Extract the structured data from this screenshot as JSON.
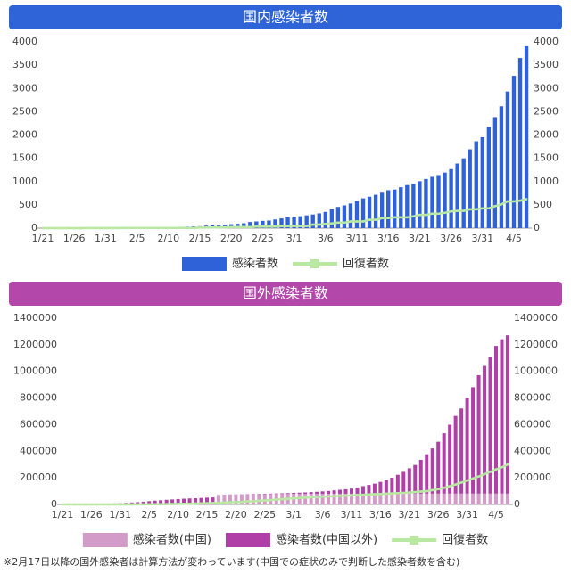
{
  "chart_data": [
    {
      "type": "bar",
      "title": "国内感染者数",
      "categories": [
        "1/21",
        null,
        null,
        null,
        null,
        "1/26",
        null,
        null,
        null,
        null,
        "1/31",
        null,
        null,
        null,
        null,
        "2/5",
        null,
        null,
        null,
        null,
        "2/10",
        null,
        null,
        null,
        null,
        "2/15",
        null,
        null,
        null,
        null,
        "2/20",
        null,
        null,
        null,
        null,
        "2/25",
        null,
        null,
        null,
        null,
        "3/1",
        null,
        null,
        null,
        null,
        "3/6",
        null,
        null,
        null,
        null,
        "3/11",
        null,
        null,
        null,
        null,
        "3/16",
        null,
        null,
        null,
        null,
        "3/21",
        null,
        null,
        null,
        null,
        "3/26",
        null,
        null,
        null,
        null,
        "3/31",
        null,
        null,
        null,
        null,
        "4/5",
        null,
        null
      ],
      "ylim": [
        0,
        4000
      ],
      "yticks": [
        0,
        500,
        1000,
        1500,
        2000,
        2500,
        3000,
        3500,
        4000
      ],
      "grid": false,
      "series": [
        {
          "name": "感染者数",
          "type": "bar",
          "color": "#2f62d8",
          "values": [
            0,
            1,
            1,
            2,
            3,
            4,
            4,
            7,
            11,
            14,
            17,
            20,
            20,
            20,
            20,
            22,
            25,
            25,
            26,
            26,
            28,
            28,
            29,
            33,
            38,
            41,
            53,
            59,
            66,
            73,
            84,
            93,
            105,
            132,
            144,
            156,
            164,
            186,
            210,
            230,
            243,
            256,
            274,
            293,
            317,
            349,
            408,
            455,
            488,
            530,
            581,
            639,
            675,
            716,
            780,
            814,
            829,
            878,
            924,
            950,
            1007,
            1055,
            1101,
            1140,
            1193,
            1268,
            1387,
            1499,
            1693,
            1866,
            1953,
            2178,
            2384,
            2617,
            2935,
            3271,
            3654,
            3906
          ]
        },
        {
          "name": "回復者数",
          "type": "line",
          "color": "#b9e8a2",
          "values": [
            0,
            0,
            0,
            0,
            0,
            0,
            0,
            1,
            1,
            1,
            1,
            1,
            1,
            4,
            4,
            4,
            4,
            4,
            4,
            4,
            4,
            4,
            4,
            4,
            4,
            12,
            12,
            14,
            18,
            18,
            22,
            22,
            22,
            22,
            32,
            32,
            32,
            32,
            43,
            43,
            46,
            46,
            46,
            76,
            76,
            92,
            102,
            118,
            118,
            144,
            144,
            144,
            180,
            180,
            215,
            215,
            232,
            232,
            232,
            255,
            285,
            285,
            310,
            310,
            330,
            359,
            372,
            372,
            404,
            404,
            424,
            424,
            472,
            511,
            575,
            575,
            592,
            622
          ]
        }
      ]
    },
    {
      "type": "stacked_bar",
      "title": "国外感染者数",
      "categories": [
        "1/21",
        null,
        null,
        null,
        null,
        "1/26",
        null,
        null,
        null,
        null,
        "1/31",
        null,
        null,
        null,
        null,
        "2/5",
        null,
        null,
        null,
        null,
        "2/10",
        null,
        null,
        null,
        null,
        "2/15",
        null,
        null,
        null,
        null,
        "2/20",
        null,
        null,
        null,
        null,
        "2/25",
        null,
        null,
        null,
        null,
        "3/1",
        null,
        null,
        null,
        null,
        "3/6",
        null,
        null,
        null,
        null,
        "3/11",
        null,
        null,
        null,
        null,
        "3/16",
        null,
        null,
        null,
        null,
        "3/21",
        null,
        null,
        null,
        null,
        "3/26",
        null,
        null,
        null,
        null,
        "3/31",
        null,
        null,
        null,
        null,
        "4/5",
        null,
        null
      ],
      "ylim": [
        0,
        1400000
      ],
      "yticks": [
        0,
        200000,
        400000,
        600000,
        800000,
        1000000,
        1200000,
        1400000
      ],
      "grid": false,
      "series": [
        {
          "name": "感染者数(中国)",
          "type": "bar",
          "color": "#d39bc8",
          "values": [
            null,
            null,
            null,
            null,
            null,
            null,
            null,
            null,
            null,
            null,
            null,
            null,
            null,
            null,
            null,
            null,
            null,
            null,
            null,
            null,
            null,
            null,
            null,
            null,
            null,
            null,
            null,
            70548,
            72436,
            74185,
            74576,
            75465,
            76288,
            76936,
            77150,
            77658,
            78064,
            78497,
            78824,
            79251,
            79824,
            80026,
            80151,
            80270,
            80409,
            80552,
            80651,
            80695,
            80735,
            80754,
            80778,
            80793,
            80813,
            80824,
            80844,
            80860,
            80881,
            80894,
            80928,
            80967,
            81008,
            81054,
            81093,
            81171,
            81218,
            81285,
            81340,
            81394,
            81439,
            81470,
            81518,
            81554,
            81589,
            81620,
            81639,
            81669,
            81708,
            81740
          ]
        },
        {
          "name": "感染者数(中国以外)",
          "type": "bar",
          "color": "#b040a8",
          "values": [
            300,
            440,
            570,
            830,
            1290,
            2020,
            2800,
            4600,
            6100,
            8200,
            9800,
            11900,
            14500,
            17300,
            20600,
            24600,
            28300,
            31500,
            34900,
            37600,
            40600,
            43100,
            45200,
            46600,
            49100,
            51200,
            53000,
            800,
            900,
            1000,
            1100,
            1200,
            1400,
            1700,
            2100,
            2600,
            3300,
            4200,
            5100,
            6000,
            7100,
            8700,
            10300,
            12600,
            14900,
            17900,
            21100,
            25200,
            29800,
            33600,
            38500,
            45500,
            56800,
            66000,
            75600,
            88800,
            101600,
            120000,
            142000,
            164000,
            191000,
            216000,
            254000,
            296000,
            340000,
            390000,
            454000,
            518000,
            584000,
            640000,
            720000,
            800000,
            890000,
            960000,
            1030000,
            1110000,
            1160000,
            1190000
          ]
        },
        {
          "name": "回復者数",
          "type": "line",
          "color": "#b9e8a2",
          "values": [
            0,
            0,
            0,
            0,
            0,
            0,
            0,
            0,
            0,
            0,
            100,
            200,
            300,
            500,
            700,
            1000,
            1400,
            2000,
            2600,
            3200,
            4000,
            4700,
            5600,
            7000,
            8300,
            9400,
            10800,
            12500,
            14400,
            16200,
            18300,
            19100,
            22700,
            24400,
            27600,
            30200,
            32800,
            36700,
            39400,
            42700,
            45500,
            48200,
            51200,
            53800,
            55900,
            58200,
            60400,
            62500,
            64300,
            66000,
            68300,
            70300,
            72600,
            75000,
            77200,
            79200,
            81100,
            83300,
            85500,
            87000,
            90000,
            93000,
            97000,
            100000,
            108000,
            115000,
            125000,
            137000,
            150000,
            164000,
            180000,
            195000,
            210000,
            228000,
            245000,
            264000,
            280000,
            300000
          ]
        }
      ],
      "footnote": "※2月17日以降の国外感染者は計算方法が変わっています(中国での症状のみで判断した感染者数を含む)"
    }
  ]
}
